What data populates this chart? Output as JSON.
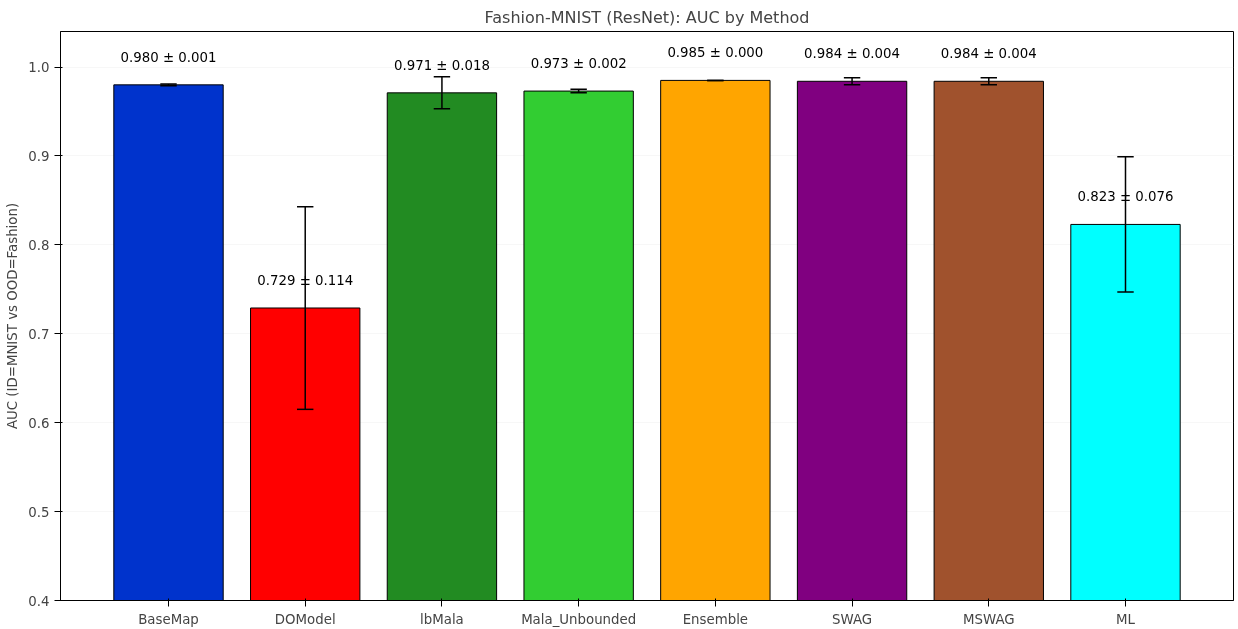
{
  "chart_data": {
    "type": "bar",
    "title": "Fashion-MNIST (ResNet): AUC by Method",
    "ylabel": "AUC (ID=MNIST vs OOD=Fashion)",
    "categories": [
      "BaseMap",
      "DOModel",
      "lbMala",
      "Mala_Unbounded",
      "Ensemble",
      "SWAG",
      "MSWAG",
      "ML"
    ],
    "values": [
      0.98,
      0.729,
      0.971,
      0.973,
      0.985,
      0.984,
      0.984,
      0.823
    ],
    "errors": [
      0.001,
      0.114,
      0.018,
      0.002,
      0.0,
      0.004,
      0.004,
      0.076
    ],
    "value_labels": [
      "0.980 ± 0.001",
      "0.729 ± 0.114",
      "0.971 ± 0.018",
      "0.973 ± 0.002",
      "0.985 ± 0.000",
      "0.984 ± 0.004",
      "0.984 ± 0.004",
      "0.823 ± 0.076"
    ],
    "colors": [
      "#0033cc",
      "#ff0000",
      "#228b22",
      "#32cd32",
      "#ffa500",
      "#800080",
      "#a0522d",
      "#00ffff"
    ],
    "ylim": [
      0.4,
      1.04
    ],
    "yticks": [
      {
        "value": 0.4,
        "label": "0.4"
      },
      {
        "value": 0.5,
        "label": "0.5"
      },
      {
        "value": 0.6,
        "label": "0.6"
      },
      {
        "value": 0.7,
        "label": "0.7"
      },
      {
        "value": 0.8,
        "label": "0.8"
      },
      {
        "value": 0.9,
        "label": "0.9"
      },
      {
        "value": 1.0,
        "label": "1.0"
      }
    ],
    "grid": "y"
  }
}
